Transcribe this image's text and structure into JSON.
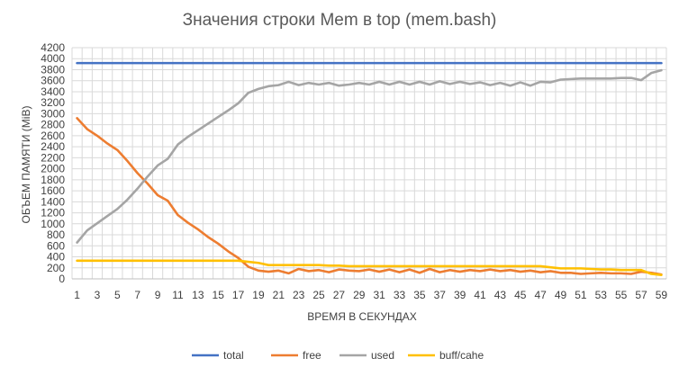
{
  "chart_data": {
    "type": "line",
    "title": "Значения строки Mem в top (mem.bash)",
    "xlabel": "ВРЕМЯ В СЕКУНДАХ",
    "ylabel": "ОБЪЕМ ПАМЯТИ (MiB)",
    "ylim": [
      0,
      4200
    ],
    "ytick_step": 200,
    "grid": "vertical-and-horizontal",
    "legend_position": "bottom",
    "x": [
      1,
      2,
      3,
      4,
      5,
      6,
      7,
      8,
      9,
      10,
      11,
      12,
      13,
      14,
      15,
      16,
      17,
      18,
      19,
      20,
      21,
      22,
      23,
      24,
      25,
      26,
      27,
      28,
      29,
      30,
      31,
      32,
      33,
      34,
      35,
      36,
      37,
      38,
      39,
      40,
      41,
      42,
      43,
      44,
      45,
      46,
      47,
      48,
      49,
      50,
      51,
      52,
      53,
      54,
      55,
      56,
      57,
      58,
      59
    ],
    "xtick_labels_shown": [
      1,
      3,
      5,
      7,
      9,
      11,
      13,
      15,
      17,
      19,
      21,
      23,
      25,
      27,
      29,
      31,
      33,
      35,
      37,
      39,
      41,
      43,
      45,
      47,
      49,
      51,
      53,
      55,
      57,
      59
    ],
    "series": [
      {
        "name": "total",
        "color": "#4472c4",
        "values": [
          3920,
          3920,
          3920,
          3920,
          3920,
          3920,
          3920,
          3920,
          3920,
          3920,
          3920,
          3920,
          3920,
          3920,
          3920,
          3920,
          3920,
          3920,
          3920,
          3920,
          3920,
          3920,
          3920,
          3920,
          3920,
          3920,
          3920,
          3920,
          3920,
          3920,
          3920,
          3920,
          3920,
          3920,
          3920,
          3920,
          3920,
          3920,
          3920,
          3920,
          3920,
          3920,
          3920,
          3920,
          3920,
          3920,
          3920,
          3920,
          3920,
          3920,
          3920,
          3920,
          3920,
          3920,
          3920,
          3920,
          3920,
          3920,
          3920
        ]
      },
      {
        "name": "free",
        "color": "#ed7d31",
        "values": [
          2920,
          2720,
          2600,
          2460,
          2340,
          2140,
          1920,
          1730,
          1520,
          1420,
          1160,
          1020,
          900,
          760,
          640,
          500,
          380,
          220,
          150,
          130,
          150,
          100,
          180,
          140,
          160,
          120,
          170,
          150,
          140,
          170,
          130,
          170,
          120,
          170,
          110,
          180,
          120,
          160,
          130,
          160,
          140,
          170,
          140,
          160,
          130,
          150,
          120,
          140,
          110,
          110,
          90,
          100,
          110,
          100,
          100,
          90,
          130,
          110,
          80
        ]
      },
      {
        "name": "used",
        "color": "#a5a5a5",
        "values": [
          660,
          880,
          1010,
          1140,
          1270,
          1440,
          1640,
          1860,
          2060,
          2180,
          2440,
          2580,
          2700,
          2820,
          2940,
          3060,
          3190,
          3380,
          3450,
          3500,
          3520,
          3580,
          3520,
          3560,
          3530,
          3560,
          3510,
          3530,
          3560,
          3530,
          3580,
          3530,
          3580,
          3530,
          3580,
          3530,
          3590,
          3540,
          3580,
          3540,
          3570,
          3520,
          3560,
          3510,
          3570,
          3510,
          3580,
          3570,
          3620,
          3630,
          3640,
          3640,
          3640,
          3640,
          3650,
          3650,
          3610,
          3740,
          3790
        ]
      },
      {
        "name": "buff/cahe",
        "color": "#ffc000",
        "values": [
          330,
          330,
          330,
          330,
          330,
          330,
          330,
          330,
          330,
          330,
          330,
          330,
          330,
          330,
          330,
          330,
          330,
          310,
          290,
          250,
          250,
          250,
          250,
          250,
          250,
          240,
          240,
          230,
          230,
          230,
          230,
          230,
          230,
          230,
          230,
          230,
          230,
          230,
          230,
          230,
          230,
          230,
          230,
          230,
          230,
          230,
          230,
          210,
          190,
          190,
          190,
          180,
          170,
          170,
          160,
          160,
          160,
          90,
          70
        ]
      }
    ]
  }
}
